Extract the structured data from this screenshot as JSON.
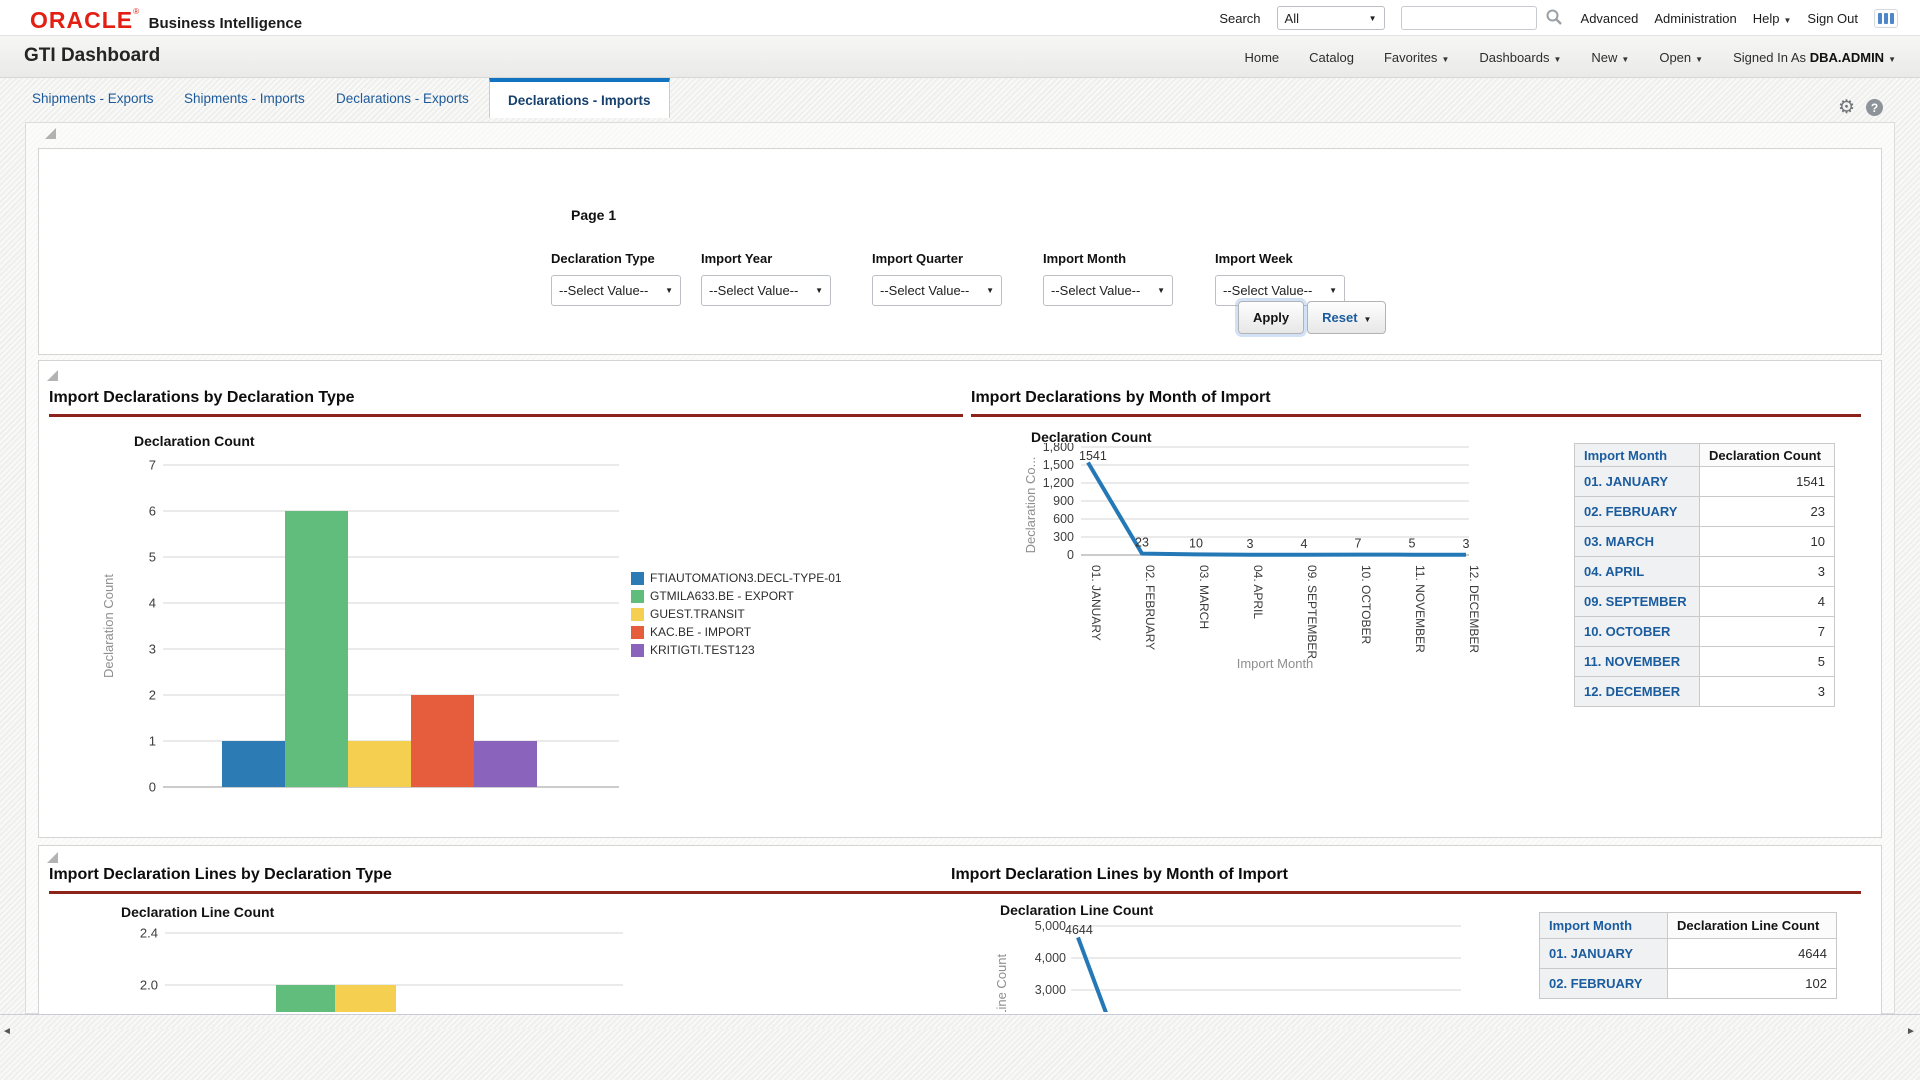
{
  "icons": {
    "caret": "▼",
    "gear": "⚙",
    "help": "?",
    "scroll_left": "◄",
    "scroll_right": "►"
  },
  "header": {
    "brand": {
      "logo": "ORACLE",
      "mark": "®",
      "product": "Business Intelligence"
    },
    "search": {
      "label": "Search",
      "scope": "All",
      "value": ""
    },
    "links": [
      "Advanced",
      "Administration"
    ],
    "help_label": "Help",
    "sign_out_label": "Sign Out"
  },
  "nav": {
    "title": "GTI Dashboard",
    "items": [
      {
        "label": "Home",
        "caret": false
      },
      {
        "label": "Catalog",
        "caret": false
      },
      {
        "label": "Favorites",
        "caret": true
      },
      {
        "label": "Dashboards",
        "caret": true
      },
      {
        "label": "New",
        "caret": true
      },
      {
        "label": "Open",
        "caret": true
      }
    ],
    "signed_in_label": "Signed In As",
    "user": "DBA.ADMIN"
  },
  "tabs": [
    {
      "label": "Shipments - Exports",
      "active": false
    },
    {
      "label": "Shipments - Imports",
      "active": false
    },
    {
      "label": "Declarations - Exports",
      "active": false
    },
    {
      "label": "Declarations - Imports",
      "active": true
    }
  ],
  "filters": {
    "page_label": "Page 1",
    "fields": [
      {
        "label": "Declaration Type",
        "value": "--Select Value--"
      },
      {
        "label": "Import Year",
        "value": "--Select Value--"
      },
      {
        "label": "Import Quarter",
        "value": "--Select Value--"
      },
      {
        "label": "Import Month",
        "value": "--Select Value--"
      },
      {
        "label": "Import Week",
        "value": "--Select Value--"
      }
    ],
    "apply_label": "Apply",
    "reset_label": "Reset"
  },
  "sections": {
    "s1_title": "Import Declarations by Declaration Type",
    "s2_title": "Import Declarations by Month of Import",
    "s3_title": "Import Declaration Lines by Declaration Type",
    "s4_title": "Import Declaration Lines by Month of Import"
  },
  "chart_data": [
    {
      "id": "import-declarations-by-type",
      "type": "bar",
      "title": "Declaration Count",
      "ylabel": "Declaration Count",
      "ylim": [
        0,
        7
      ],
      "yticks": [
        0,
        1,
        2,
        3,
        4,
        5,
        6,
        7
      ],
      "grid": true,
      "legend_position": "right",
      "series": [
        {
          "name": "FTIAUTOMATION3.DECL-TYPE-01",
          "value": 1,
          "color": "#2c7bb5"
        },
        {
          "name": "GTMILA633.BE - EXPORT",
          "value": 6,
          "color": "#61bd7b"
        },
        {
          "name": "GUEST.TRANSIT",
          "value": 1,
          "color": "#f5cf50"
        },
        {
          "name": "KAC.BE - IMPORT",
          "value": 2,
          "color": "#e55d3d"
        },
        {
          "name": "KRITIGTI.TEST123",
          "value": 1,
          "color": "#8a63bd"
        }
      ]
    },
    {
      "id": "import-declarations-by-month",
      "type": "line",
      "title": "Declaration Count",
      "ylabel": "Declaration Co...",
      "xlabel": "Import Month",
      "ylim": [
        0,
        1800
      ],
      "yticks": [
        0,
        300,
        600,
        900,
        1200,
        1500,
        1800
      ],
      "grid": true,
      "color": "#2478b6",
      "categories": [
        "01. JANUARY",
        "02. FEBRUARY",
        "03. MARCH",
        "04. APRIL",
        "09. SEPTEMBER",
        "10. OCTOBER",
        "11. NOVEMBER",
        "12. DECEMBER"
      ],
      "values": [
        1541,
        23,
        10,
        3,
        4,
        7,
        5,
        3
      ]
    },
    {
      "id": "import-declarations-by-month-table",
      "type": "table",
      "headers": [
        "Import Month",
        "Declaration Count"
      ],
      "rows": [
        [
          "01. JANUARY",
          1541
        ],
        [
          "02. FEBRUARY",
          23
        ],
        [
          "03. MARCH",
          10
        ],
        [
          "04. APRIL",
          3
        ],
        [
          "09. SEPTEMBER",
          4
        ],
        [
          "10. OCTOBER",
          7
        ],
        [
          "11. NOVEMBER",
          5
        ],
        [
          "12. DECEMBER",
          3
        ]
      ]
    },
    {
      "id": "import-declaration-lines-by-type",
      "type": "bar",
      "title": "Declaration Line Count",
      "visible_yticks": [
        "2.4",
        "2.0"
      ],
      "values": [
        2.0,
        2.0
      ],
      "colors": [
        "#61bd7b",
        "#f5cf50"
      ],
      "clipped": true
    },
    {
      "id": "import-declaration-lines-by-month",
      "type": "line",
      "title": "Declaration Line Count",
      "ylabel": "Declaration Line Count",
      "visible_yticks": [
        "5,000",
        "4,000",
        "3,000"
      ],
      "ylim": [
        0,
        5000
      ],
      "color": "#2478b6",
      "first_point_label": "4644",
      "values": [
        4644,
        102
      ],
      "clipped": true
    },
    {
      "id": "import-declaration-lines-by-month-table",
      "type": "table",
      "headers": [
        "Import Month",
        "Declaration Line Count"
      ],
      "rows": [
        [
          "01. JANUARY",
          4644
        ],
        [
          "02. FEBRUARY",
          102
        ]
      ]
    }
  ]
}
